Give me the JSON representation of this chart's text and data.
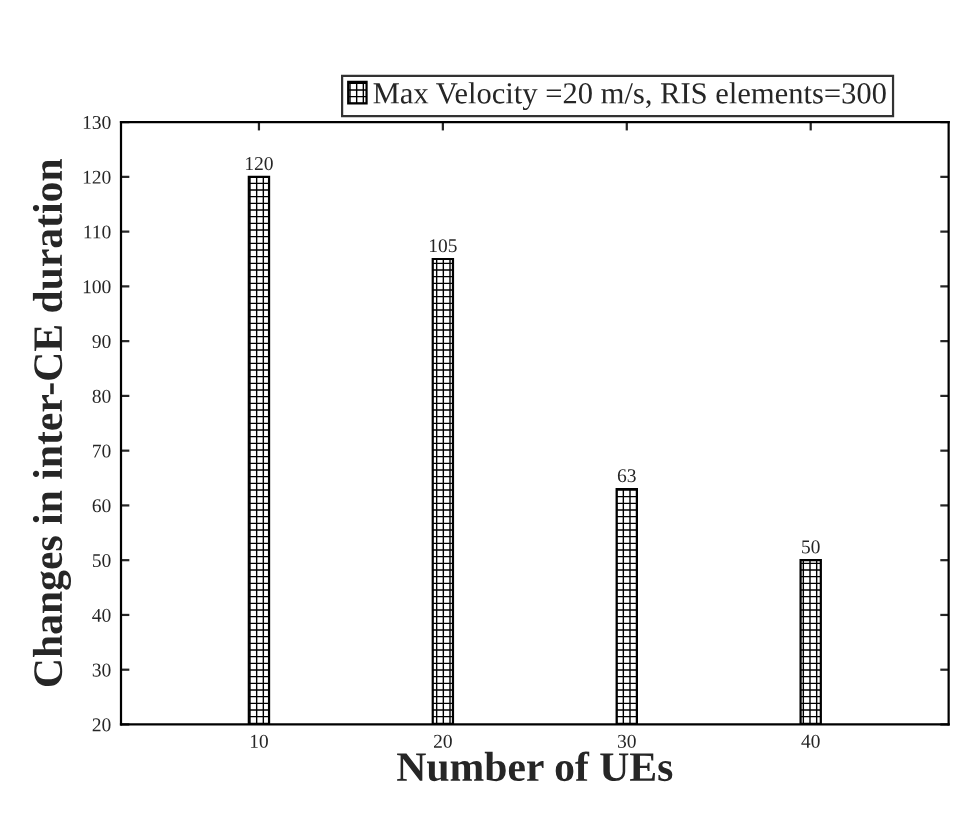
{
  "chart_data": {
    "type": "bar",
    "xlabel": "Number of UEs",
    "ylabel": "Changes in inter-CE duration",
    "categories": [
      "10",
      "20",
      "30",
      "40"
    ],
    "series": [
      {
        "name": "Max Velocity =20 m/s, RIS elements=300",
        "color": "#000000",
        "values": [
          120,
          105,
          63,
          50
        ]
      }
    ],
    "ylim": [
      20,
      130
    ],
    "yticks": [
      20,
      30,
      40,
      50,
      60,
      70,
      80,
      90,
      100,
      110,
      120,
      130
    ],
    "data_labels": true,
    "legend": "top",
    "grid": false
  }
}
